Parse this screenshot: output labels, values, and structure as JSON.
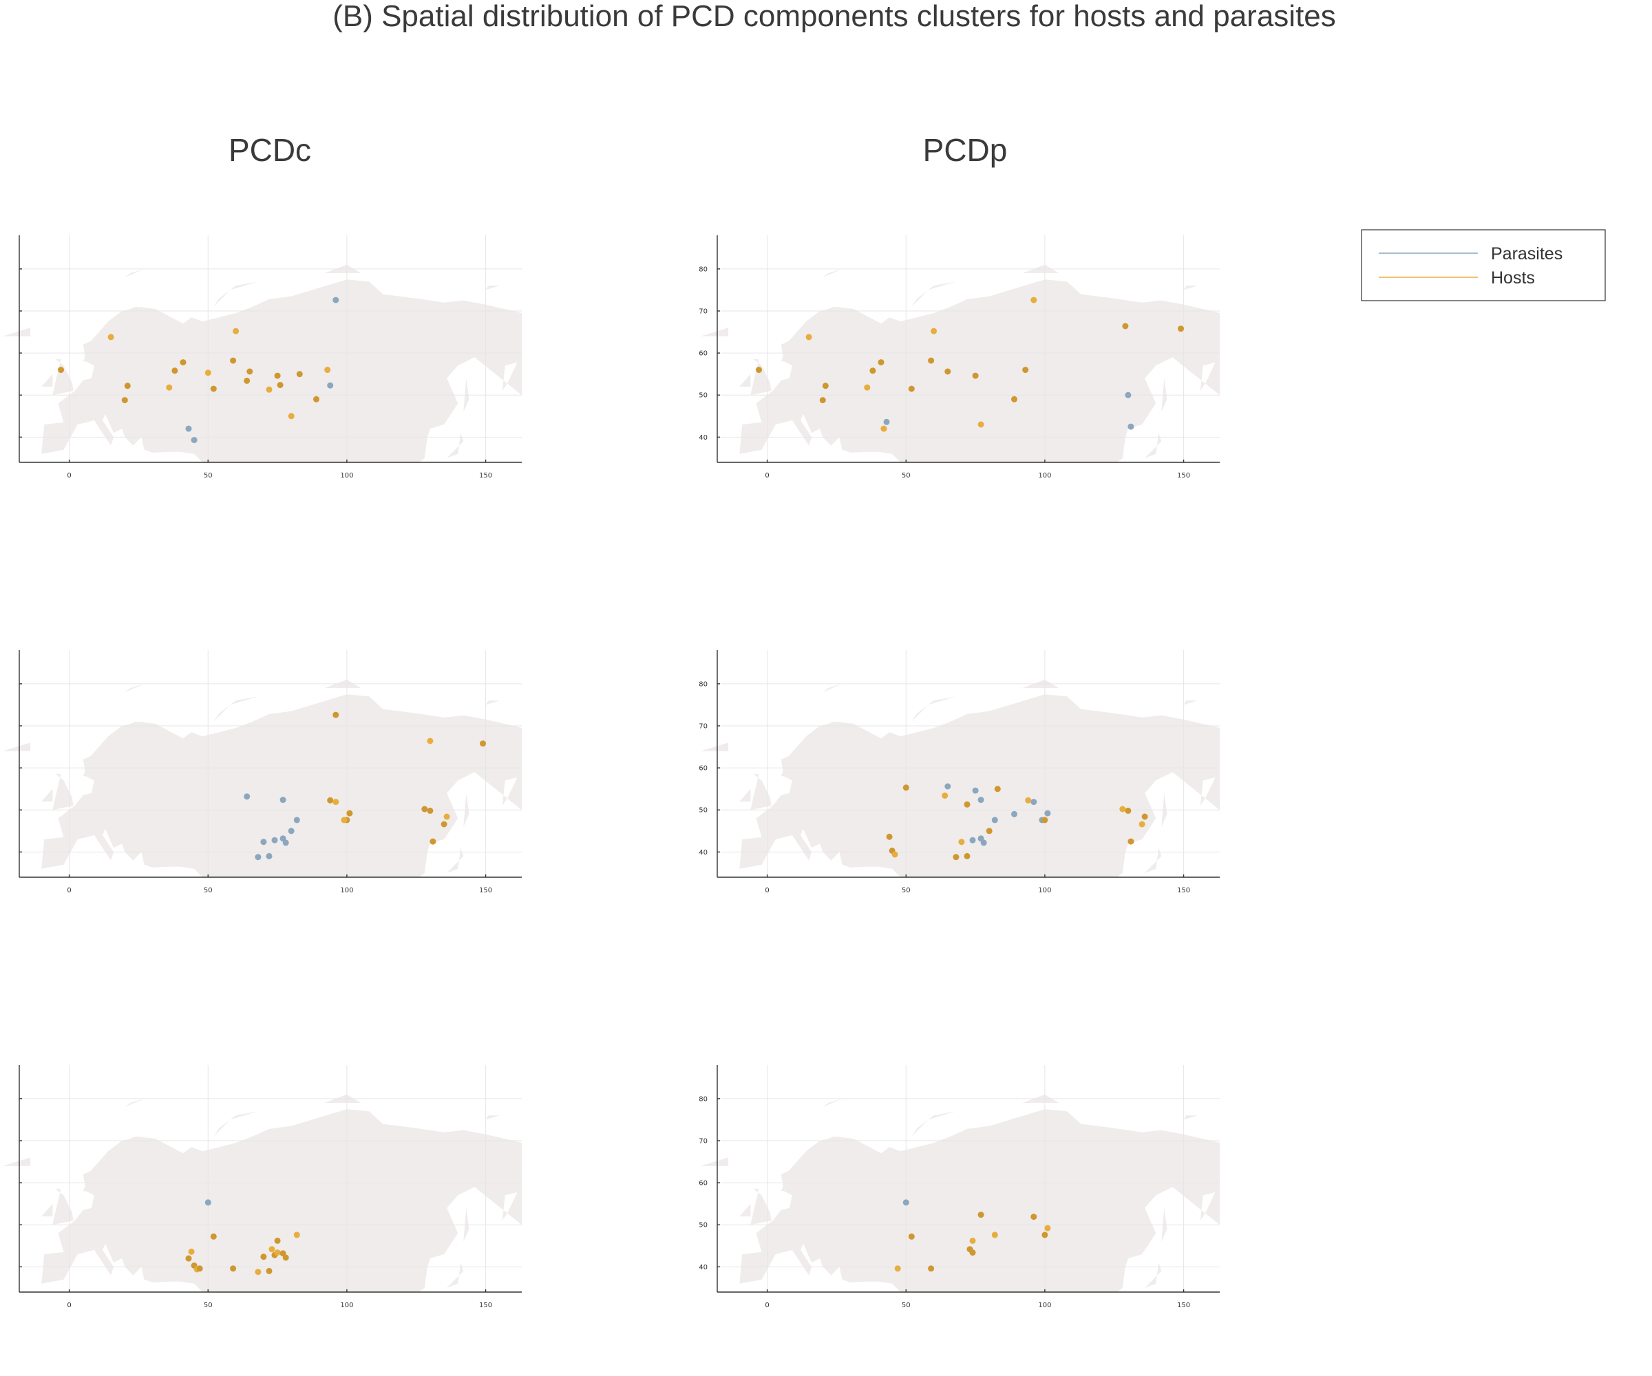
{
  "figure": {
    "title": "(B) Spatial distribution of PCD components clusters for hosts and parasites",
    "column_titles": [
      "PCDc",
      "PCDp"
    ],
    "legend": [
      {
        "label": "Parasites",
        "color": "#8aa7bf"
      },
      {
        "label": "Hosts",
        "color": "#e8ad3e"
      }
    ]
  },
  "colors": {
    "parasites": "#8aa7bf",
    "hosts": "#e8ad3e",
    "hosts_dark": "#cf9730",
    "land": "#efeceb"
  },
  "chart_data": [
    {
      "type": "scatter",
      "column": "PCDc",
      "row": 1,
      "xlim": [
        -18,
        163
      ],
      "ylim": [
        34,
        88
      ],
      "grid": true,
      "xticks": [
        0,
        50,
        100,
        150
      ],
      "yticks": [
        40,
        50,
        60,
        70,
        80
      ],
      "ytick_labels_visible": false,
      "series": [
        {
          "name": "Parasites",
          "points": [
            [
              96,
              72.6
            ],
            [
              43,
              42
            ],
            [
              45,
              39.3
            ],
            [
              94,
              52.3
            ]
          ]
        },
        {
          "name": "Hosts",
          "points": [
            [
              -3,
              56
            ],
            [
              15,
              63.8
            ],
            [
              21,
              52.2
            ],
            [
              20,
              48.8
            ],
            [
              36,
              51.8
            ],
            [
              38,
              55.8
            ],
            [
              41,
              57.8
            ],
            [
              50,
              55.3
            ],
            [
              52,
              51.5
            ],
            [
              59,
              58.2
            ],
            [
              60,
              65.2
            ],
            [
              64,
              53.4
            ],
            [
              65,
              55.6
            ],
            [
              72,
              51.3
            ],
            [
              75,
              54.6
            ],
            [
              76,
              52.4
            ],
            [
              80,
              45
            ],
            [
              83,
              55
            ],
            [
              89,
              49
            ],
            [
              93,
              56
            ]
          ]
        }
      ]
    },
    {
      "type": "scatter",
      "column": "PCDp",
      "row": 1,
      "xlim": [
        -18,
        163
      ],
      "ylim": [
        34,
        88
      ],
      "grid": true,
      "xticks": [
        0,
        50,
        100,
        150
      ],
      "yticks": [
        40,
        50,
        60,
        70,
        80
      ],
      "series": [
        {
          "name": "Parasites",
          "points": [
            [
              43,
              43.6
            ],
            [
              130,
              50
            ],
            [
              131,
              42.5
            ]
          ]
        },
        {
          "name": "Hosts",
          "points": [
            [
              -3,
              56
            ],
            [
              15,
              63.8
            ],
            [
              21,
              52.2
            ],
            [
              20,
              48.8
            ],
            [
              36,
              51.8
            ],
            [
              38,
              55.8
            ],
            [
              41,
              57.8
            ],
            [
              42,
              42
            ],
            [
              52,
              51.5
            ],
            [
              59,
              58.2
            ],
            [
              60,
              65.2
            ],
            [
              65,
              55.6
            ],
            [
              75,
              54.6
            ],
            [
              77,
              43
            ],
            [
              89,
              49
            ],
            [
              93,
              56
            ],
            [
              96,
              72.6
            ],
            [
              129,
              66.4
            ],
            [
              149,
              65.8
            ]
          ]
        }
      ]
    },
    {
      "type": "scatter",
      "column": "PCDc",
      "row": 2,
      "xlim": [
        -18,
        163
      ],
      "ylim": [
        34,
        88
      ],
      "grid": true,
      "xticks": [
        0,
        50,
        100,
        150
      ],
      "yticks": [
        40,
        50,
        60,
        70,
        80
      ],
      "ytick_labels_visible": false,
      "series": [
        {
          "name": "Parasites",
          "points": [
            [
              64,
              53.2
            ],
            [
              77,
              52.4
            ],
            [
              82,
              47.6
            ],
            [
              80,
              45
            ],
            [
              70,
              42.4
            ],
            [
              74,
              42.8
            ],
            [
              77,
              43.2
            ],
            [
              78,
              42.2
            ],
            [
              68,
              38.8
            ],
            [
              72,
              39
            ]
          ]
        },
        {
          "name": "Hosts",
          "points": [
            [
              96,
              72.6
            ],
            [
              130,
              66.4
            ],
            [
              149,
              65.8
            ],
            [
              94,
              52.3
            ],
            [
              96,
              51.9
            ],
            [
              101,
              49.2
            ],
            [
              100,
              47.6
            ],
            [
              99,
              47.6
            ],
            [
              128,
              50.2
            ],
            [
              130,
              49.8
            ],
            [
              136,
              48.4
            ],
            [
              135,
              46.6
            ],
            [
              131,
              42.5
            ]
          ]
        }
      ]
    },
    {
      "type": "scatter",
      "column": "PCDp",
      "row": 2,
      "xlim": [
        -18,
        163
      ],
      "ylim": [
        34,
        88
      ],
      "grid": true,
      "xticks": [
        0,
        50,
        100,
        150
      ],
      "yticks": [
        40,
        50,
        60,
        70,
        80
      ],
      "series": [
        {
          "name": "Parasites",
          "points": [
            [
              65,
              55.6
            ],
            [
              75,
              54.6
            ],
            [
              77,
              52.4
            ],
            [
              89,
              49
            ],
            [
              96,
              51.9
            ],
            [
              101,
              49.2
            ],
            [
              99,
              47.6
            ],
            [
              82,
              47.6
            ],
            [
              74,
              42.8
            ],
            [
              77,
              43.2
            ],
            [
              78,
              42.2
            ]
          ]
        },
        {
          "name": "Hosts",
          "points": [
            [
              50,
              55.3
            ],
            [
              64,
              53.4
            ],
            [
              72,
              51.3
            ],
            [
              83,
              55
            ],
            [
              94,
              52.3
            ],
            [
              100,
              47.6
            ],
            [
              80,
              45
            ],
            [
              70,
              42.4
            ],
            [
              44,
              43.6
            ],
            [
              45,
              40.3
            ],
            [
              46,
              39.4
            ],
            [
              68,
              38.8
            ],
            [
              72,
              39
            ],
            [
              128,
              50.2
            ],
            [
              130,
              49.8
            ],
            [
              136,
              48.4
            ],
            [
              135,
              46.6
            ],
            [
              131,
              42.5
            ]
          ]
        }
      ]
    },
    {
      "type": "scatter",
      "column": "PCDc",
      "row": 3,
      "xlim": [
        -18,
        163
      ],
      "ylim": [
        34,
        88
      ],
      "grid": true,
      "xticks": [
        0,
        50,
        100,
        150
      ],
      "yticks": [
        40,
        50,
        60,
        70,
        80
      ],
      "ytick_labels_visible": false,
      "series": [
        {
          "name": "Parasites",
          "points": [
            [
              50,
              55.3
            ]
          ]
        },
        {
          "name": "Hosts",
          "points": [
            [
              52,
              47.2
            ],
            [
              44,
              43.6
            ],
            [
              43,
              42
            ],
            [
              45,
              40.3
            ],
            [
              46,
              39.4
            ],
            [
              47,
              39.6
            ],
            [
              59,
              39.6
            ],
            [
              68,
              38.8
            ],
            [
              70,
              42.4
            ],
            [
              72,
              39
            ],
            [
              73,
              44.2
            ],
            [
              74,
              42.8
            ],
            [
              75,
              46.2
            ],
            [
              75,
              43.4
            ],
            [
              77,
              43.2
            ],
            [
              78,
              42.2
            ],
            [
              82,
              47.6
            ]
          ]
        }
      ]
    },
    {
      "type": "scatter",
      "column": "PCDp",
      "row": 3,
      "xlim": [
        -18,
        163
      ],
      "ylim": [
        34,
        88
      ],
      "grid": true,
      "xticks": [
        0,
        50,
        100,
        150
      ],
      "yticks": [
        40,
        50,
        60,
        70,
        80
      ],
      "series": [
        {
          "name": "Parasites",
          "points": [
            [
              50,
              55.3
            ]
          ]
        },
        {
          "name": "Hosts",
          "points": [
            [
              52,
              47.2
            ],
            [
              47,
              39.6
            ],
            [
              59,
              39.6
            ],
            [
              73,
              44.2
            ],
            [
              74,
              46.2
            ],
            [
              74,
              43.4
            ],
            [
              77,
              52.4
            ],
            [
              82,
              47.6
            ],
            [
              96,
              51.9
            ],
            [
              100,
              47.6
            ],
            [
              101,
              49.2
            ]
          ]
        }
      ]
    }
  ]
}
